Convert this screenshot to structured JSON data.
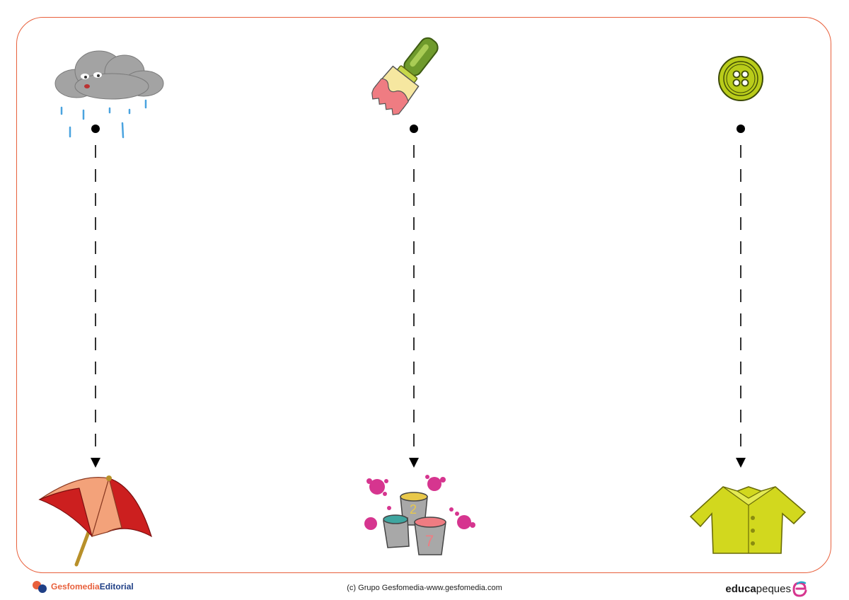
{
  "worksheet": {
    "activity": "dashed-line tracing worksheet",
    "pairs": [
      {
        "top_icon": "rain-cloud-icon",
        "bottom_icon": "umbrella-icon"
      },
      {
        "top_icon": "paintbrush-icon",
        "bottom_icon": "paint-buckets-icon"
      },
      {
        "top_icon": "button-icon",
        "bottom_icon": "jacket-icon"
      }
    ],
    "paint_bucket_numbers": [
      "2",
      "7"
    ]
  },
  "footer": {
    "publisher_logo_part1": "Gesfomedia",
    "publisher_logo_part2": "Editorial",
    "copyright": "(c) Grupo Gesfomedia-www.gesfomedia.com",
    "brand_part1": "educa",
    "brand_part2": "peques"
  },
  "colors": {
    "frame_border": "#e8603c",
    "cloud": "#9a9a9a",
    "rain": "#4aa3df",
    "brush_handle": "#6f9a2c",
    "button": "#b9cc1a",
    "umbrella_red": "#cc1f1f",
    "umbrella_peach": "#f3a27a",
    "jacket": "#d2d81e",
    "paint_splat": "#d6358f"
  }
}
